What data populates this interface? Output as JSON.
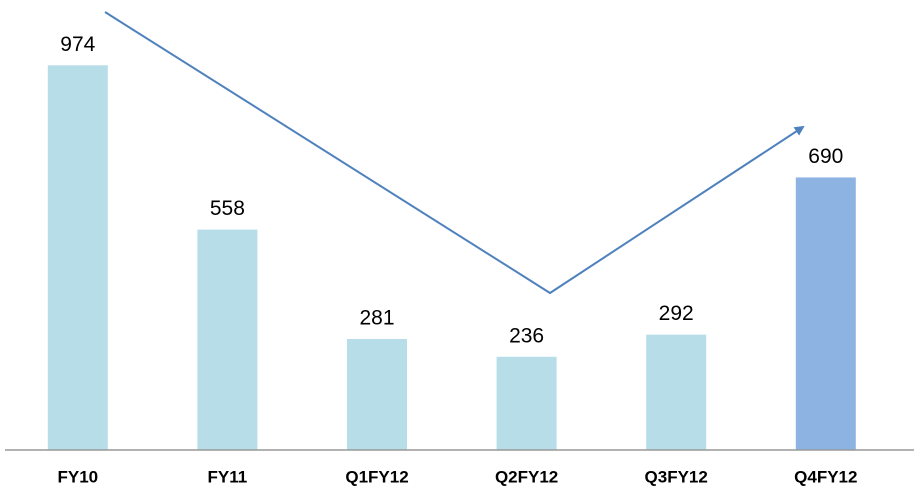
{
  "chart_data": {
    "type": "bar",
    "categories": [
      "FY10",
      "FY11",
      "Q1FY12",
      "Q2FY12",
      "Q3FY12",
      "Q4FY12"
    ],
    "values": [
      974,
      558,
      281,
      236,
      292,
      690
    ],
    "colors": [
      "#b7dde8",
      "#b7dde8",
      "#b7dde8",
      "#b7dde8",
      "#b7dde8",
      "#8db3e2"
    ]
  }
}
